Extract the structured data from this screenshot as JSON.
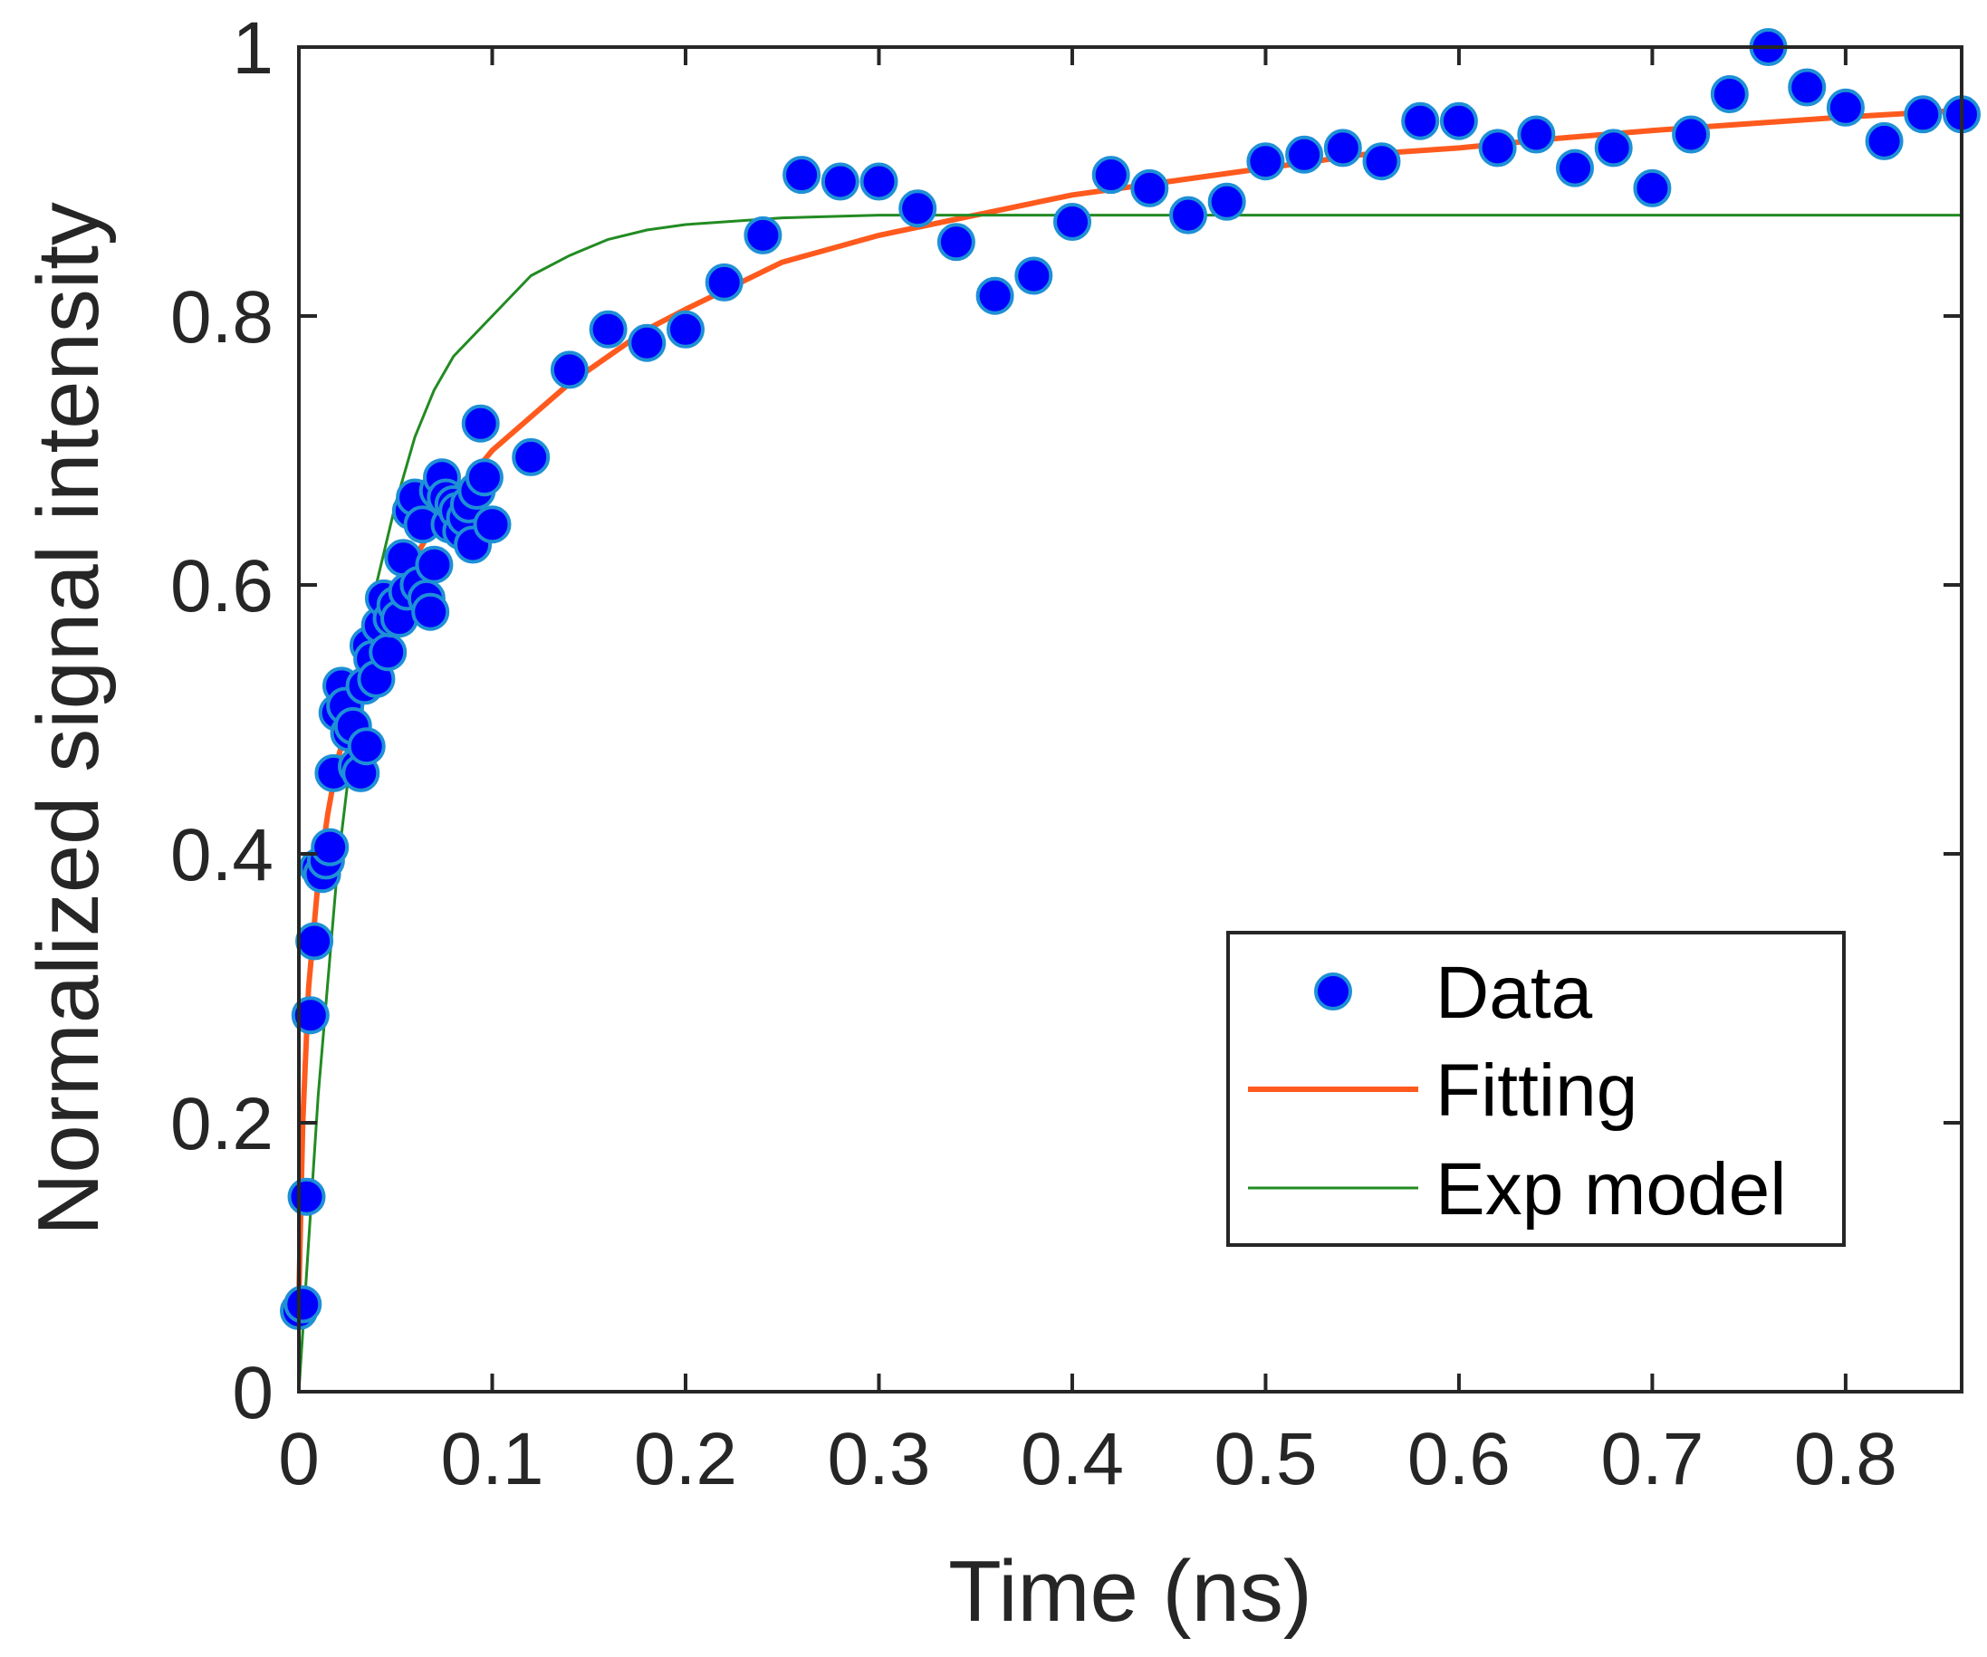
{
  "chart_data": {
    "type": "scatter",
    "xlabel": "Time (ns)",
    "ylabel": "Normalized signal intensity",
    "xlim": [
      0,
      0.86
    ],
    "ylim": [
      0,
      1
    ],
    "xticks": [
      0,
      0.1,
      0.2,
      0.3,
      0.4,
      0.5,
      0.6,
      0.7,
      0.8
    ],
    "xtick_labels": [
      "0",
      "0.1",
      "0.2",
      "0.3",
      "0.4",
      "0.5",
      "0.6",
      "0.7",
      "0.8"
    ],
    "yticks": [
      0,
      0.2,
      0.4,
      0.6,
      0.8,
      1
    ],
    "ytick_labels": [
      "0",
      "0.2",
      "0.4",
      "0.6",
      "0.8",
      "1"
    ],
    "grid": false,
    "box": true,
    "legend_position": "bottom-right",
    "legend": [
      "Data",
      "Fitting",
      "Exp model"
    ],
    "series": [
      {
        "name": "Data",
        "kind": "markers",
        "color": "#0000ff",
        "edge_color": "#1e90d6",
        "points": [
          [
            0.0,
            0.06
          ],
          [
            0.002,
            0.065
          ],
          [
            0.004,
            0.145
          ],
          [
            0.006,
            0.28
          ],
          [
            0.008,
            0.335
          ],
          [
            0.01,
            0.39
          ],
          [
            0.012,
            0.385
          ],
          [
            0.014,
            0.395
          ],
          [
            0.016,
            0.405
          ],
          [
            0.018,
            0.46
          ],
          [
            0.02,
            0.505
          ],
          [
            0.022,
            0.525
          ],
          [
            0.024,
            0.51
          ],
          [
            0.026,
            0.49
          ],
          [
            0.028,
            0.495
          ],
          [
            0.03,
            0.465
          ],
          [
            0.032,
            0.46
          ],
          [
            0.034,
            0.525
          ],
          [
            0.035,
            0.48
          ],
          [
            0.036,
            0.555
          ],
          [
            0.038,
            0.545
          ],
          [
            0.04,
            0.53
          ],
          [
            0.042,
            0.57
          ],
          [
            0.044,
            0.59
          ],
          [
            0.046,
            0.55
          ],
          [
            0.048,
            0.575
          ],
          [
            0.05,
            0.585
          ],
          [
            0.052,
            0.575
          ],
          [
            0.054,
            0.62
          ],
          [
            0.056,
            0.595
          ],
          [
            0.058,
            0.655
          ],
          [
            0.06,
            0.665
          ],
          [
            0.062,
            0.6
          ],
          [
            0.064,
            0.645
          ],
          [
            0.066,
            0.59
          ],
          [
            0.068,
            0.58
          ],
          [
            0.07,
            0.615
          ],
          [
            0.072,
            0.67
          ],
          [
            0.074,
            0.68
          ],
          [
            0.076,
            0.665
          ],
          [
            0.078,
            0.645
          ],
          [
            0.08,
            0.66
          ],
          [
            0.082,
            0.655
          ],
          [
            0.084,
            0.64
          ],
          [
            0.086,
            0.65
          ],
          [
            0.088,
            0.66
          ],
          [
            0.09,
            0.63
          ],
          [
            0.092,
            0.67
          ],
          [
            0.094,
            0.72
          ],
          [
            0.096,
            0.68
          ],
          [
            0.1,
            0.645
          ],
          [
            0.12,
            0.695
          ],
          [
            0.14,
            0.76
          ],
          [
            0.16,
            0.79
          ],
          [
            0.18,
            0.78
          ],
          [
            0.2,
            0.79
          ],
          [
            0.22,
            0.825
          ],
          [
            0.24,
            0.86
          ],
          [
            0.26,
            0.905
          ],
          [
            0.28,
            0.9
          ],
          [
            0.3,
            0.9
          ],
          [
            0.32,
            0.88
          ],
          [
            0.34,
            0.855
          ],
          [
            0.36,
            0.815
          ],
          [
            0.38,
            0.83
          ],
          [
            0.4,
            0.87
          ],
          [
            0.42,
            0.905
          ],
          [
            0.44,
            0.895
          ],
          [
            0.46,
            0.875
          ],
          [
            0.48,
            0.885
          ],
          [
            0.5,
            0.915
          ],
          [
            0.52,
            0.92
          ],
          [
            0.54,
            0.925
          ],
          [
            0.56,
            0.915
          ],
          [
            0.58,
            0.945
          ],
          [
            0.6,
            0.945
          ],
          [
            0.62,
            0.925
          ],
          [
            0.64,
            0.935
          ],
          [
            0.66,
            0.91
          ],
          [
            0.68,
            0.925
          ],
          [
            0.7,
            0.895
          ],
          [
            0.72,
            0.935
          ],
          [
            0.74,
            0.965
          ],
          [
            0.76,
            1.0
          ],
          [
            0.78,
            0.97
          ],
          [
            0.8,
            0.955
          ],
          [
            0.82,
            0.93
          ],
          [
            0.84,
            0.95
          ],
          [
            0.86,
            0.95
          ]
        ]
      },
      {
        "name": "Fitting",
        "kind": "line",
        "color": "#ff5a1e",
        "points": [
          [
            0.0,
            0.07
          ],
          [
            0.002,
            0.2
          ],
          [
            0.005,
            0.3
          ],
          [
            0.01,
            0.38
          ],
          [
            0.015,
            0.43
          ],
          [
            0.02,
            0.47
          ],
          [
            0.03,
            0.52
          ],
          [
            0.04,
            0.56
          ],
          [
            0.05,
            0.59
          ],
          [
            0.06,
            0.62
          ],
          [
            0.07,
            0.645
          ],
          [
            0.08,
            0.665
          ],
          [
            0.1,
            0.7
          ],
          [
            0.12,
            0.725
          ],
          [
            0.14,
            0.75
          ],
          [
            0.16,
            0.77
          ],
          [
            0.18,
            0.79
          ],
          [
            0.2,
            0.805
          ],
          [
            0.25,
            0.84
          ],
          [
            0.3,
            0.86
          ],
          [
            0.35,
            0.875
          ],
          [
            0.4,
            0.89
          ],
          [
            0.45,
            0.9
          ],
          [
            0.5,
            0.91
          ],
          [
            0.55,
            0.92
          ],
          [
            0.6,
            0.925
          ],
          [
            0.65,
            0.932
          ],
          [
            0.7,
            0.938
          ],
          [
            0.75,
            0.943
          ],
          [
            0.8,
            0.948
          ],
          [
            0.86,
            0.953
          ]
        ]
      },
      {
        "name": "Exp model",
        "kind": "line",
        "color": "#228b22",
        "points": [
          [
            0.0,
            0.0
          ],
          [
            0.01,
            0.22
          ],
          [
            0.02,
            0.39
          ],
          [
            0.03,
            0.51
          ],
          [
            0.04,
            0.6
          ],
          [
            0.05,
            0.66
          ],
          [
            0.06,
            0.71
          ],
          [
            0.07,
            0.745
          ],
          [
            0.08,
            0.77
          ],
          [
            0.1,
            0.8
          ],
          [
            0.12,
            0.83
          ],
          [
            0.14,
            0.845
          ],
          [
            0.16,
            0.857
          ],
          [
            0.18,
            0.864
          ],
          [
            0.2,
            0.868
          ],
          [
            0.25,
            0.873
          ],
          [
            0.3,
            0.875
          ],
          [
            0.4,
            0.875
          ],
          [
            0.5,
            0.875
          ],
          [
            0.6,
            0.875
          ],
          [
            0.7,
            0.875
          ],
          [
            0.8,
            0.875
          ],
          [
            0.86,
            0.875
          ]
        ]
      }
    ]
  }
}
